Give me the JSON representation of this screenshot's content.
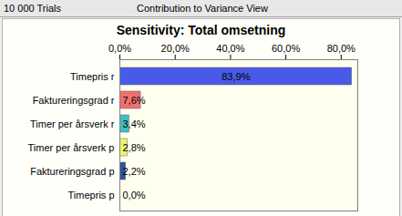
{
  "chart_data": {
    "type": "bar",
    "orientation": "horizontal",
    "annotations": [
      "10 000 Trials",
      "Contribution to Variance View"
    ],
    "title": "Sensitivity: Total omsetning",
    "categories": [
      "Timepris r",
      "Faktureringsgrad r",
      "Timer per årsverk r",
      "Timer per årsverk p",
      "Faktureringsgrad p",
      "Timepris p"
    ],
    "values": [
      83.9,
      7.6,
      3.4,
      2.8,
      2.2,
      0.0
    ],
    "value_labels": [
      "83,9%",
      "7,6%",
      "3,4%",
      "2,8%",
      "2,2%",
      "0,0%"
    ],
    "colors": [
      "#4a5ae8",
      "#f07070",
      "#40c0c0",
      "#f0f070",
      "#3050a0",
      "#c0c0c0"
    ],
    "xlim": [
      0,
      86
    ],
    "xticks": [
      {
        "value": 0,
        "label": "0,0%"
      },
      {
        "value": 20,
        "label": "20,0%"
      },
      {
        "value": 40,
        "label": "40,0%"
      },
      {
        "value": 60,
        "label": "60,0%"
      },
      {
        "value": 80,
        "label": "80,0%"
      }
    ],
    "grid": false,
    "data_labels": true
  }
}
